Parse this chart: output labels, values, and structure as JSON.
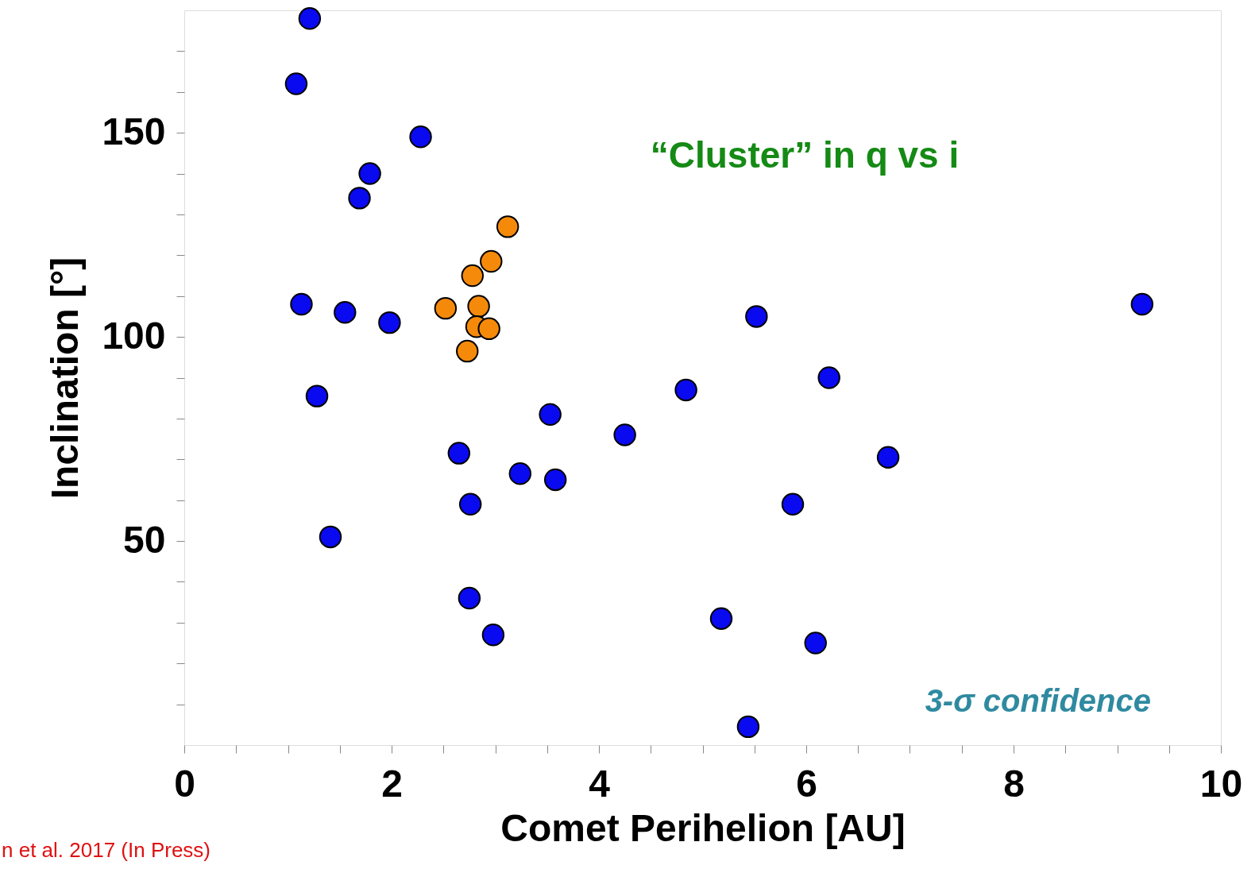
{
  "chart_data": {
    "type": "scatter",
    "xlabel": "Comet Perihelion [AU]",
    "ylabel": "Inclination [°]",
    "xlim": [
      0,
      10
    ],
    "ylim": [
      0,
      180
    ],
    "xticks": [
      0,
      {
        "value": 0.5,
        "label": null
      },
      {
        "value": 1,
        "label": null
      },
      {
        "value": 1.5,
        "label": null
      },
      2,
      {
        "value": 2.5,
        "label": null
      },
      {
        "value": 3,
        "label": null
      },
      {
        "value": 3.5,
        "label": null
      },
      4,
      {
        "value": 4.5,
        "label": null
      },
      {
        "value": 5,
        "label": null
      },
      {
        "value": 5.5,
        "label": null
      },
      6,
      {
        "value": 6.5,
        "label": null
      },
      {
        "value": 7,
        "label": null
      },
      {
        "value": 7.5,
        "label": null
      },
      8,
      {
        "value": 8.5,
        "label": null
      },
      {
        "value": 9,
        "label": null
      },
      {
        "value": 9.5,
        "label": null
      },
      10
    ],
    "yticks": [
      {
        "value": 10,
        "label": null
      },
      {
        "value": 20,
        "label": null
      },
      {
        "value": 30,
        "label": null
      },
      {
        "value": 40,
        "label": null
      },
      50,
      {
        "value": 60,
        "label": null
      },
      {
        "value": 70,
        "label": null
      },
      {
        "value": 80,
        "label": null
      },
      {
        "value": 90,
        "label": null
      },
      100,
      {
        "value": 110,
        "label": null
      },
      {
        "value": 120,
        "label": null
      },
      {
        "value": 130,
        "label": null
      },
      {
        "value": 140,
        "label": null
      },
      150,
      {
        "value": 160,
        "label": null
      },
      {
        "value": 170,
        "label": null
      }
    ],
    "grid": false,
    "marker": "circle",
    "series": [
      {
        "color": "#0a0af0",
        "x": [
          1.21,
          1.08,
          2.28,
          1.79,
          1.69,
          1.13,
          1.55,
          1.98,
          1.28,
          2.65,
          3.24,
          3.58,
          2.76,
          1.41,
          2.75,
          2.98,
          3.53,
          4.25,
          4.84,
          5.52,
          6.22,
          6.79,
          5.87,
          5.18,
          6.09,
          5.44,
          9.24
        ],
        "values": [
          178,
          162,
          149,
          140,
          134,
          108,
          106,
          103.5,
          85.5,
          71.5,
          66.5,
          65,
          59,
          51,
          36,
          27,
          81,
          76,
          87,
          105,
          90,
          70.5,
          59,
          31,
          25,
          4.5,
          108
        ]
      },
      {
        "color": "#f58a0a",
        "x": [
          3.12,
          2.96,
          2.78,
          2.52,
          2.84,
          2.82,
          2.94,
          2.73
        ],
        "values": [
          127,
          118.5,
          115,
          107,
          107.5,
          102.5,
          102,
          96.5
        ]
      }
    ],
    "annotations": [
      "“Cluster” in q vs i",
      "3-σ confidence",
      "n et al. 2017 (In Press)"
    ]
  }
}
